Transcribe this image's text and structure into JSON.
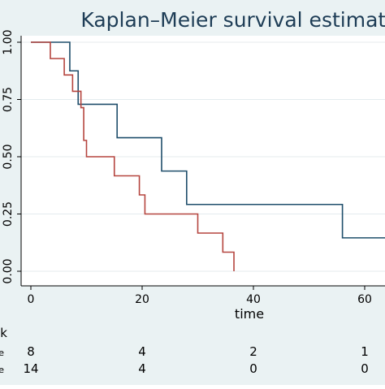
{
  "chart_data": {
    "type": "line",
    "step": true,
    "title": "Kaplan–Meier survival estimate",
    "xlabel": "time",
    "ylabel": "",
    "xlim": [
      0,
      65
    ],
    "ylim": [
      0,
      1
    ],
    "x_ticks": [
      0,
      20,
      40,
      60
    ],
    "y_ticks": [
      0.0,
      0.25,
      0.5,
      0.75,
      1.0
    ],
    "x_tick_labels": [
      "0",
      "20",
      "40",
      "60"
    ],
    "y_tick_labels": [
      "0.00",
      "0.25",
      "0.50",
      "0.75",
      "1.00"
    ],
    "grid": true,
    "series": [
      {
        "color": "#1f4e6b",
        "x": [
          0,
          7,
          8.5,
          15.5,
          23.5,
          28,
          56,
          65
        ],
        "y": [
          1.0,
          0.875,
          0.729,
          0.583,
          0.4375,
          0.2917,
          0.1458,
          0.1458
        ]
      },
      {
        "color": "#b5453f",
        "x": [
          0,
          3.5,
          6,
          7.5,
          9,
          9.5,
          10,
          15,
          19.5,
          20.5,
          30,
          34.5,
          36.5
        ],
        "y": [
          1.0,
          0.9286,
          0.8571,
          0.7857,
          0.7143,
          0.5714,
          0.5,
          0.4167,
          0.3333,
          0.25,
          0.1667,
          0.0833,
          0.0
        ]
      }
    ],
    "risk_table": {
      "header_fragment": "sk",
      "row_label_fragments": [
        "e",
        "e"
      ],
      "at_times": [
        0,
        20,
        40,
        60
      ],
      "rows": [
        [
          8,
          4,
          2,
          1
        ],
        [
          14,
          4,
          0,
          0
        ]
      ]
    }
  }
}
